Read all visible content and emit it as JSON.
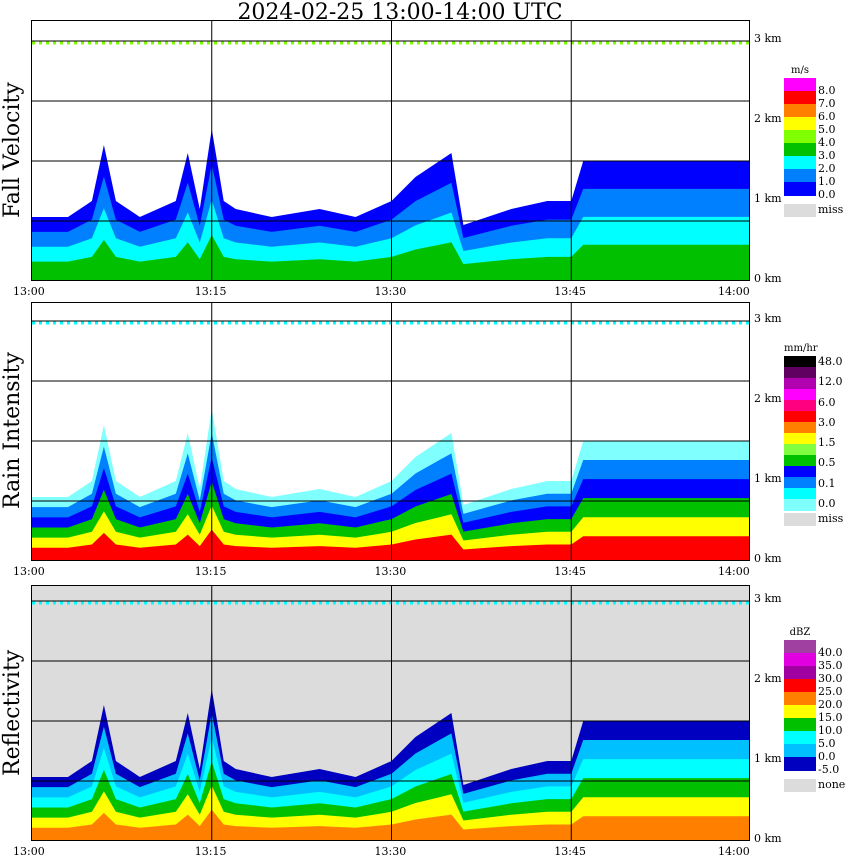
{
  "title": "2024-02-25  13:00-14:00 UTC",
  "x_ticks": [
    "13:00",
    "13:15",
    "13:30",
    "13:45",
    "14:00"
  ],
  "km_ticks": [
    "3 km",
    "2 km",
    "1 km",
    "0 km"
  ],
  "chart_data": [
    {
      "type": "heatmap",
      "ylabel": "Fall Velocity",
      "xlabel": "",
      "xlim": [
        "13:00",
        "14:00"
      ],
      "ylim_km": [
        0,
        3
      ],
      "grid": true,
      "legend": {
        "unit": "m/s",
        "colors": [
          "#ff00ff",
          "#ff0000",
          "#ff8000",
          "#ffff00",
          "#80ff00",
          "#00c000",
          "#00ffff",
          "#0080ff",
          "#0000ff"
        ],
        "labels": [
          "8.0",
          "7.0",
          "6.0",
          "5.0",
          "4.0",
          "3.0",
          "2.0",
          "1.0",
          "0.0"
        ],
        "missing": "miss"
      }
    },
    {
      "type": "heatmap",
      "ylabel": "Rain Intensity",
      "xlabel": "",
      "xlim": [
        "13:00",
        "14:00"
      ],
      "ylim_km": [
        0,
        3
      ],
      "grid": true,
      "legend": {
        "unit": "mm/hr",
        "colors": [
          "#000000",
          "#600060",
          "#b000b0",
          "#ff00ff",
          "#ff0080",
          "#ff0000",
          "#ff8000",
          "#ffff00",
          "#80ff40",
          "#00c000",
          "#0000ff",
          "#0080ff",
          "#00ffff",
          "#80ffff"
        ],
        "labels": [
          "48.0",
          "12.0",
          "6.0",
          "3.0",
          "1.5",
          "0.5",
          "0.1",
          "0.0"
        ],
        "missing": "miss"
      }
    },
    {
      "type": "heatmap",
      "ylabel": "Reflectivity",
      "xlabel": "",
      "xlim": [
        "13:00",
        "14:00"
      ],
      "ylim_km": [
        0,
        3
      ],
      "grid": true,
      "legend": {
        "unit": "dBZ",
        "colors": [
          "#a040a0",
          "#e000e0",
          "#a000a0",
          "#ff0000",
          "#ff8000",
          "#ffff00",
          "#00c000",
          "#00ffff",
          "#00c0ff",
          "#0000c0"
        ],
        "labels": [
          "40.0",
          "35.0",
          "30.0",
          "25.0",
          "20.0",
          "15.0",
          "10.0",
          "5.0",
          "0.0",
          "-5.0"
        ],
        "missing": "none"
      }
    }
  ],
  "echo_top_km": {
    "minutes": [
      0,
      3,
      5,
      6,
      7,
      9,
      12,
      13,
      14,
      15,
      16,
      17,
      20,
      24,
      27,
      30,
      32,
      34,
      35,
      36,
      38,
      40,
      43,
      45,
      46,
      50,
      55,
      58,
      60
    ],
    "values": [
      0.8,
      0.8,
      1.0,
      1.7,
      1.0,
      0.8,
      1.0,
      1.6,
      0.9,
      1.9,
      1.0,
      0.9,
      0.8,
      0.9,
      0.8,
      1.0,
      1.3,
      1.5,
      1.6,
      0.7,
      0.8,
      0.9,
      1.0,
      1.0,
      1.5,
      1.5,
      1.5,
      1.5,
      1.5
    ]
  }
}
